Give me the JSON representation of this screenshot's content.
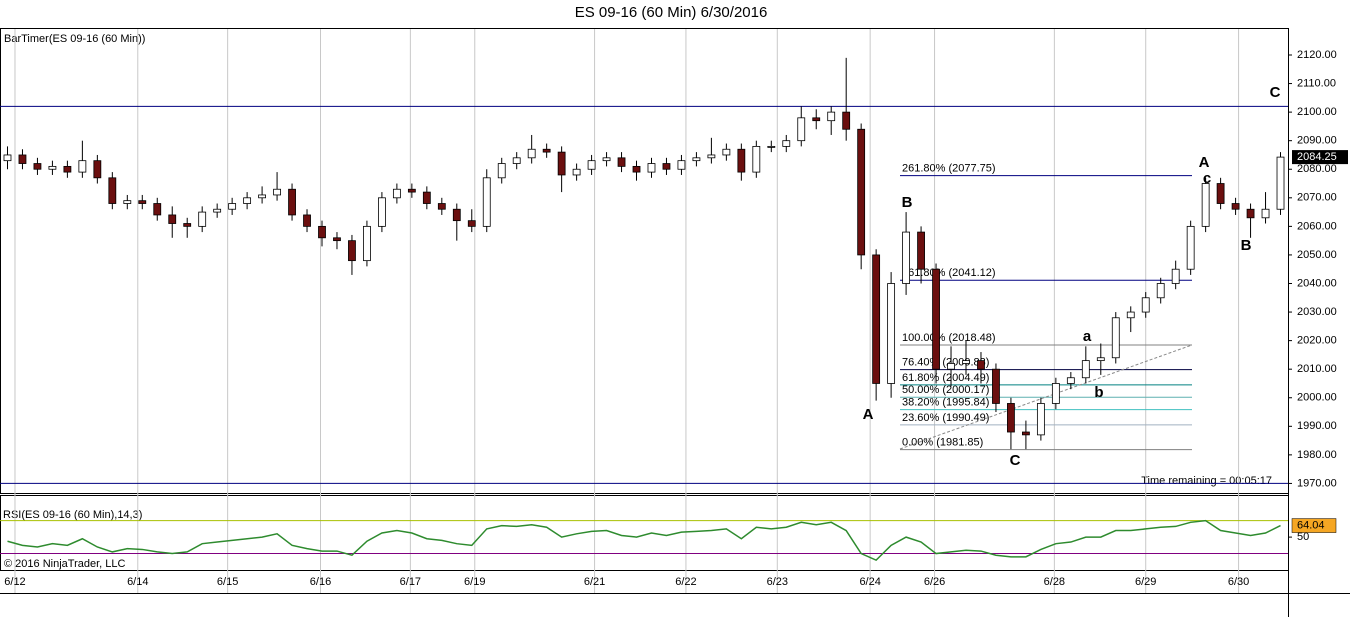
{
  "chart_data": [
    {
      "type": "candlestick",
      "title": "ES 09-16 (60 Min)  6/30/2016",
      "indicator_label": "BarTimer(ES 09-16 (60 Min))",
      "timer_text": "Time remaining = 00:05:17",
      "copyright": "© 2016 NinjaTrader, LLC",
      "up_color": "#ffffff",
      "down_color": "#6b0f0f",
      "xlim": [
        -0.5,
        85.5
      ],
      "xticks": [
        {
          "value": 0.5,
          "label": "6/12"
        },
        {
          "value": 8.7,
          "label": "6/14"
        },
        {
          "value": 14.7,
          "label": "6/15"
        },
        {
          "value": 20.9,
          "label": "6/16"
        },
        {
          "value": 26.9,
          "label": "6/17"
        },
        {
          "value": 31.2,
          "label": "6/19"
        },
        {
          "value": 39.2,
          "label": "6/21"
        },
        {
          "value": 45.3,
          "label": "6/22"
        },
        {
          "value": 51.4,
          "label": "6/23"
        },
        {
          "value": 57.6,
          "label": "6/24"
        },
        {
          "value": 61.9,
          "label": "6/26"
        },
        {
          "value": 69.9,
          "label": "6/28"
        },
        {
          "value": 76.0,
          "label": "6/29"
        },
        {
          "value": 82.2,
          "label": "6/30"
        }
      ],
      "ylim": [
        1967,
        2127
      ],
      "yticks": [
        {
          "value": 1970,
          "label": "1970.00"
        },
        {
          "value": 1980,
          "label": "1980.00"
        },
        {
          "value": 1990,
          "label": "1990.00"
        },
        {
          "value": 2000,
          "label": "2000.00"
        },
        {
          "value": 2010,
          "label": "2010.00"
        },
        {
          "value": 2020,
          "label": "2020.00"
        },
        {
          "value": 2030,
          "label": "2030.00"
        },
        {
          "value": 2040,
          "label": "2040.00"
        },
        {
          "value": 2050,
          "label": "2050.00"
        },
        {
          "value": 2060,
          "label": "2060.00"
        },
        {
          "value": 2070,
          "label": "2070.00"
        },
        {
          "value": 2080,
          "label": "2080.00"
        },
        {
          "value": 2090,
          "label": "2090.00"
        },
        {
          "value": 2100,
          "label": "2100.00"
        },
        {
          "value": 2110,
          "label": "2110.00"
        },
        {
          "value": 2120,
          "label": "2120.00"
        }
      ],
      "hlines": [
        2102,
        1970
      ],
      "hline_color": "#000080",
      "open": [
        2083,
        2085,
        2082,
        2080,
        2081,
        2079,
        2083,
        2077,
        2068,
        2069,
        2068,
        2064,
        2061,
        2060,
        2065,
        2066,
        2068,
        2070,
        2071,
        2073,
        2064,
        2060,
        2056,
        2055,
        2048,
        2060,
        2070,
        2073,
        2072,
        2068,
        2066,
        2062,
        2060,
        2077,
        2082,
        2084,
        2087,
        2086,
        2078,
        2080,
        2083,
        2084,
        2081,
        2079,
        2082,
        2080,
        2083,
        2084,
        2085,
        2087,
        2079,
        2088,
        2088,
        2090,
        2098,
        2097,
        2100,
        2094,
        2050,
        2005,
        2040,
        2058,
        2045,
        2010,
        2012,
        2013,
        2010,
        1998,
        1988,
        1987,
        1998,
        2005,
        2007,
        2013,
        2014,
        2028,
        2030,
        2035,
        2040,
        2045,
        2060,
        2075,
        2068,
        2066,
        2063,
        2066
      ],
      "high": [
        2088,
        2087,
        2084,
        2083,
        2083,
        2090,
        2085,
        2079,
        2071,
        2071,
        2070,
        2067,
        2063,
        2067,
        2068,
        2070,
        2072,
        2074,
        2079,
        2075,
        2066,
        2062,
        2058,
        2057,
        2062,
        2072,
        2075,
        2075,
        2074,
        2070,
        2068,
        2066,
        2080,
        2084,
        2086,
        2092,
        2089,
        2088,
        2082,
        2085,
        2086,
        2086,
        2083,
        2084,
        2084,
        2085,
        2086,
        2091,
        2089,
        2089,
        2090,
        2090,
        2092,
        2102,
        2101,
        2102,
        2119,
        2096,
        2052,
        2044,
        2065,
        2060,
        2047,
        2018,
        2020,
        2016,
        2012,
        2000,
        1992,
        2000,
        2007,
        2009,
        2018,
        2019,
        2030,
        2032,
        2037,
        2042,
        2048,
        2062,
        2077,
        2077,
        2070,
        2068,
        2072,
        2086
      ],
      "low": [
        2080,
        2080,
        2078,
        2078,
        2077,
        2077,
        2075,
        2066,
        2066,
        2066,
        2062,
        2056,
        2056,
        2058,
        2063,
        2064,
        2066,
        2068,
        2069,
        2062,
        2058,
        2053,
        2052,
        2043,
        2046,
        2058,
        2068,
        2070,
        2066,
        2064,
        2055,
        2058,
        2058,
        2075,
        2080,
        2082,
        2084,
        2072,
        2076,
        2078,
        2081,
        2079,
        2076,
        2077,
        2078,
        2078,
        2081,
        2082,
        2083,
        2076,
        2077,
        2086,
        2086,
        2088,
        2094,
        2092,
        2090,
        2045,
        1999,
        2000,
        2036,
        2040,
        2005,
        2004,
        2008,
        2005,
        1995,
        1982,
        1982,
        1985,
        1996,
        2003,
        2005,
        2008,
        2012,
        2023,
        2028,
        2033,
        2038,
        2043,
        2058,
        2066,
        2064,
        2056,
        2061,
        2064
      ],
      "close": [
        2085,
        2082,
        2080,
        2081,
        2079,
        2083,
        2077,
        2068,
        2069,
        2068,
        2064,
        2061,
        2060,
        2065,
        2066,
        2068,
        2070,
        2071,
        2073,
        2064,
        2060,
        2056,
        2055,
        2048,
        2060,
        2070,
        2073,
        2072,
        2068,
        2066,
        2062,
        2060,
        2077,
        2082,
        2084,
        2087,
        2086,
        2078,
        2080,
        2083,
        2084,
        2081,
        2079,
        2082,
        2080,
        2083,
        2084,
        2085,
        2087,
        2079,
        2088,
        2088,
        2090,
        2098,
        2097,
        2100,
        2094,
        2050,
        2005,
        2040,
        2058,
        2045,
        2010,
        2012,
        2013,
        2010,
        1998,
        1988,
        1987,
        1998,
        2005,
        2007,
        2013,
        2014,
        2028,
        2030,
        2035,
        2040,
        2045,
        2060,
        2075,
        2068,
        2066,
        2063,
        2066,
        2084.25
      ],
      "fib_levels": [
        {
          "value": 2077.75,
          "label": "261.80% (2077.75)",
          "color": "#000080"
        },
        {
          "value": 2041.12,
          "label": "161.80% (2041.12)",
          "color": "#000080"
        },
        {
          "value": 2018.48,
          "label": "100.00% (2018.48)",
          "color": "#808080"
        },
        {
          "value": 2009.83,
          "label": "76.40% (2009.83)",
          "color": "#000040"
        },
        {
          "value": 2004.49,
          "label": "61.80% (2004.49)",
          "color": "#008080"
        },
        {
          "value": 2000.17,
          "label": "50.00% (2000.17)",
          "color": "#5fb0b0"
        },
        {
          "value": 1995.84,
          "label": "38.20% (1995.84)",
          "color": "#40c0c0"
        },
        {
          "value": 1990.49,
          "label": "23.60% (1990.49)",
          "color": "#a0b0c0"
        },
        {
          "value": 1981.85,
          "label": "0.00% (1981.85)",
          "color": "#808080"
        }
      ],
      "annotations": [
        "A",
        "B",
        "C",
        "a",
        "b",
        "A",
        "c",
        "B",
        "C"
      ]
    },
    {
      "type": "line",
      "label": "RSI(ES 09-16 (60 Min),14,3)",
      "color": "#2e8b2e",
      "ylim": [
        10,
        100
      ],
      "yticks": [
        50
      ],
      "levels": [
        {
          "value": 70,
          "color": "#a8c000"
        },
        {
          "value": 30,
          "color": "#800080"
        }
      ],
      "values": [
        45,
        40,
        38,
        42,
        40,
        48,
        38,
        32,
        36,
        35,
        32,
        30,
        32,
        42,
        44,
        46,
        48,
        50,
        54,
        40,
        36,
        33,
        33,
        28,
        45,
        55,
        58,
        55,
        48,
        46,
        42,
        40,
        60,
        64,
        63,
        65,
        62,
        50,
        54,
        57,
        58,
        52,
        50,
        55,
        52,
        56,
        57,
        58,
        60,
        48,
        62,
        60,
        62,
        68,
        65,
        68,
        58,
        30,
        22,
        40,
        50,
        44,
        30,
        32,
        34,
        33,
        28,
        26,
        26,
        35,
        42,
        44,
        50,
        50,
        58,
        58,
        60,
        62,
        63,
        68,
        70,
        58,
        55,
        52,
        55,
        64.04
      ]
    }
  ]
}
